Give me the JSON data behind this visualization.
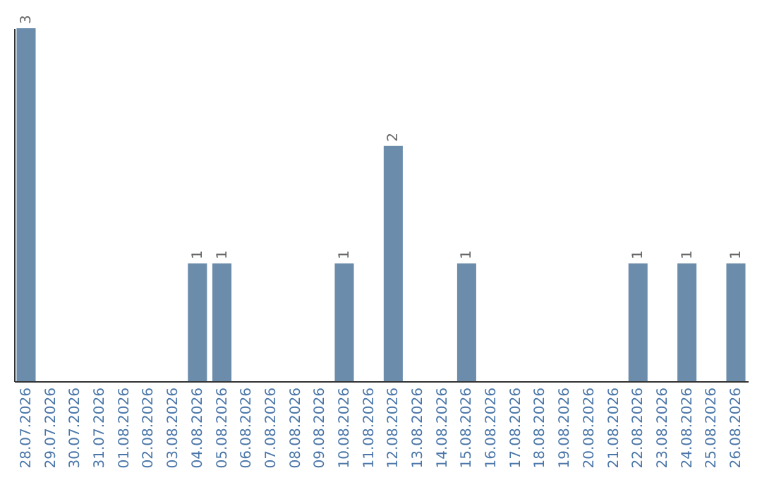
{
  "chart_data": {
    "type": "bar",
    "categories": [
      "28.07.2026",
      "29.07.2026",
      "30.07.2026",
      "31.07.2026",
      "01.08.2026",
      "02.08.2026",
      "03.08.2026",
      "04.08.2026",
      "05.08.2026",
      "06.08.2026",
      "07.08.2026",
      "08.08.2026",
      "09.08.2026",
      "10.08.2026",
      "11.08.2026",
      "12.08.2026",
      "13.08.2026",
      "14.08.2026",
      "15.08.2026",
      "16.08.2026",
      "17.08.2026",
      "18.08.2026",
      "19.08.2026",
      "20.08.2026",
      "21.08.2026",
      "22.08.2026",
      "23.08.2026",
      "24.08.2026",
      "25.08.2026",
      "26.08.2026"
    ],
    "values": [
      3,
      0,
      0,
      0,
      0,
      0,
      0,
      1,
      1,
      0,
      0,
      0,
      0,
      1,
      0,
      2,
      0,
      0,
      1,
      0,
      0,
      0,
      0,
      0,
      0,
      1,
      0,
      1,
      0,
      1
    ],
    "value_labels": [
      "3",
      null,
      null,
      null,
      null,
      null,
      null,
      "1",
      "1",
      null,
      null,
      null,
      null,
      "1",
      null,
      "2",
      null,
      null,
      "1",
      null,
      null,
      null,
      null,
      null,
      null,
      "1",
      null,
      "1",
      null,
      "1"
    ],
    "color": "#6b8cab",
    "tick_labels": "x",
    "grid": false
  }
}
